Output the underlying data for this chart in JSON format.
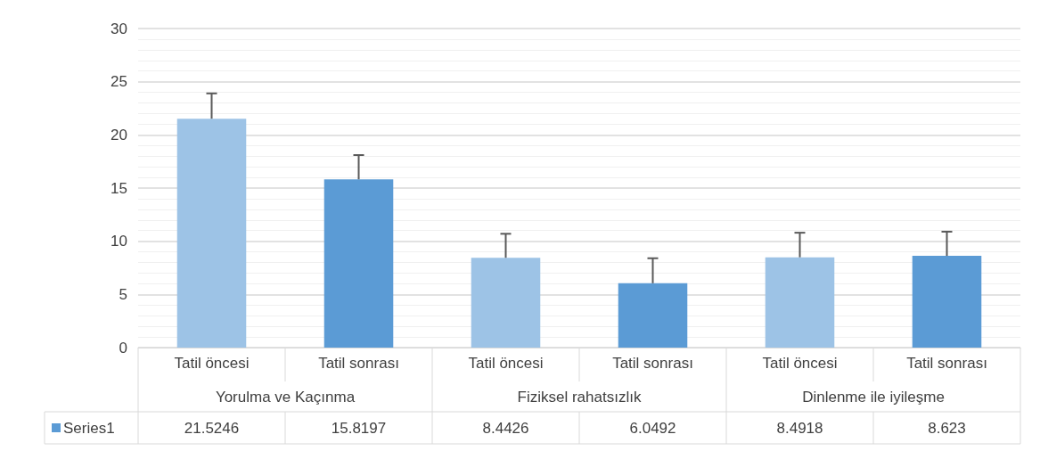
{
  "chart_data": {
    "type": "bar",
    "categories": [
      "Tatil öncesi",
      "Tatil sonrası",
      "Tatil öncesi",
      "Tatil sonrası",
      "Tatil öncesi",
      "Tatil sonrası"
    ],
    "annotations": [
      "Yorulma ve Kaçınma",
      "Fiziksel rahatsızlık",
      "Dinlenme ile iyileşme"
    ],
    "series": [
      {
        "name": "Series1",
        "color": "#5b9bd5",
        "colors": [
          "#9dc3e6",
          "#5b9bd5",
          "#9dc3e6",
          "#5b9bd5",
          "#9dc3e6",
          "#5b9bd5"
        ],
        "values": [
          21.5246,
          15.8197,
          8.4426,
          6.0492,
          8.4918,
          8.623
        ],
        "errors": [
          [
            21.5246,
            23.9
          ],
          [
            15.8197,
            18.1
          ],
          [
            8.4426,
            10.7
          ],
          [
            6.0492,
            8.4
          ],
          [
            8.4918,
            10.8
          ],
          [
            8.623,
            10.9
          ]
        ]
      }
    ],
    "ylim": [
      0,
      30
    ],
    "yticks": [
      0,
      5,
      10,
      15,
      20,
      25,
      30
    ],
    "grid": true,
    "data_labels": true,
    "legend": "bottom left"
  }
}
